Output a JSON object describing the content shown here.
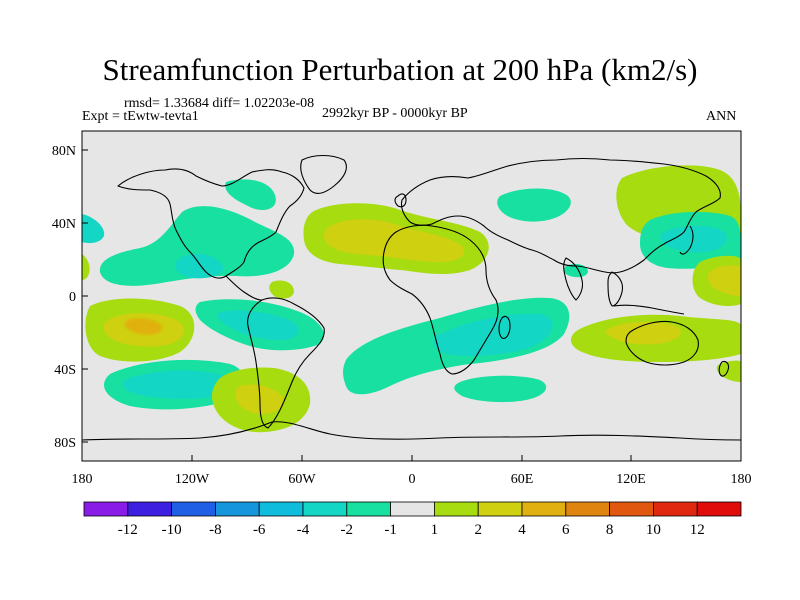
{
  "title": "Streamfunction Perturbation at 200 hPa (km2/s)",
  "stats": "rmsd= 1.33684 diff= 1.02203e-08",
  "experiment": "Expt = tEwtw-tevta1",
  "period": "2992kyr BP - 0000kyr BP",
  "season": "ANN",
  "axes": {
    "x_ticks": [
      "180",
      "120W",
      "60W",
      "0",
      "60E",
      "120E",
      "180"
    ],
    "y_ticks": [
      "80N",
      "40N",
      "0",
      "40S",
      "80S"
    ]
  },
  "colorbar": {
    "labels": [
      "-12",
      "-10",
      "-8",
      "-6",
      "-4",
      "-2",
      "-1",
      "1",
      "2",
      "4",
      "6",
      "8",
      "10",
      "12"
    ],
    "colors": [
      "#8a1ce8",
      "#3d1fe0",
      "#1f5fe6",
      "#1495dc",
      "#10bcdc",
      "#14d6c4",
      "#18e0a0",
      "#e6e6e6",
      "#a6dc10",
      "#cfd010",
      "#e0b010",
      "#e08410",
      "#e05810",
      "#e02810",
      "#e00c0c"
    ]
  },
  "palette": {
    "neutral": "#e6e6e6",
    "coast": "#000000"
  }
}
